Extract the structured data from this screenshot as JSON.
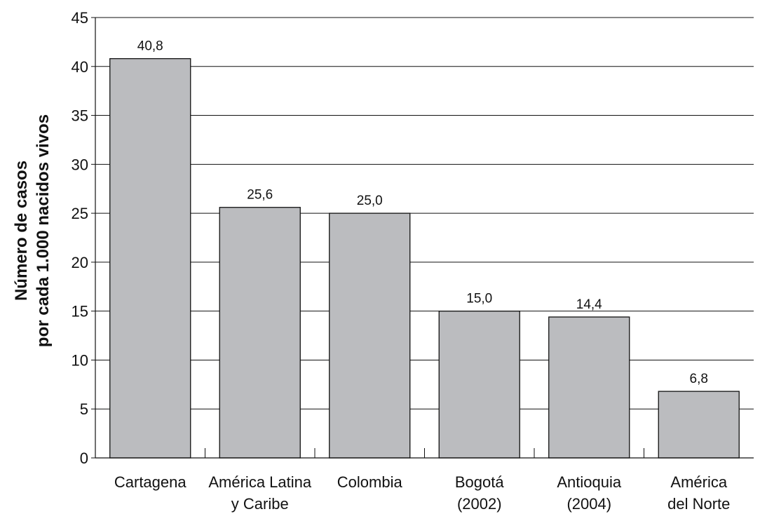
{
  "chart_data": {
    "type": "bar",
    "categories": [
      [
        "Cartagena"
      ],
      [
        "América Latina",
        "y Caribe"
      ],
      [
        "Colombia"
      ],
      [
        "Bogotá",
        "(2002)"
      ],
      [
        "Antioquia",
        "(2004)"
      ],
      [
        "América",
        "del Norte"
      ]
    ],
    "values": [
      40.8,
      25.6,
      25.0,
      15.0,
      14.4,
      6.8
    ],
    "value_labels": [
      "40,8",
      "25,6",
      "25,0",
      "15,0",
      "14,4",
      "6,8"
    ],
    "ylabel": [
      "Número de casos",
      "por cada 1.000 nacidos vivos"
    ],
    "xlabel": "",
    "title": "",
    "ylim": [
      0,
      45
    ],
    "yticks": [
      0,
      5,
      10,
      15,
      20,
      25,
      30,
      35,
      40,
      45
    ],
    "grid": true,
    "colors": {
      "bar": "#bbbcbf",
      "bar_stroke": "#111111",
      "grid": "#111111"
    }
  }
}
